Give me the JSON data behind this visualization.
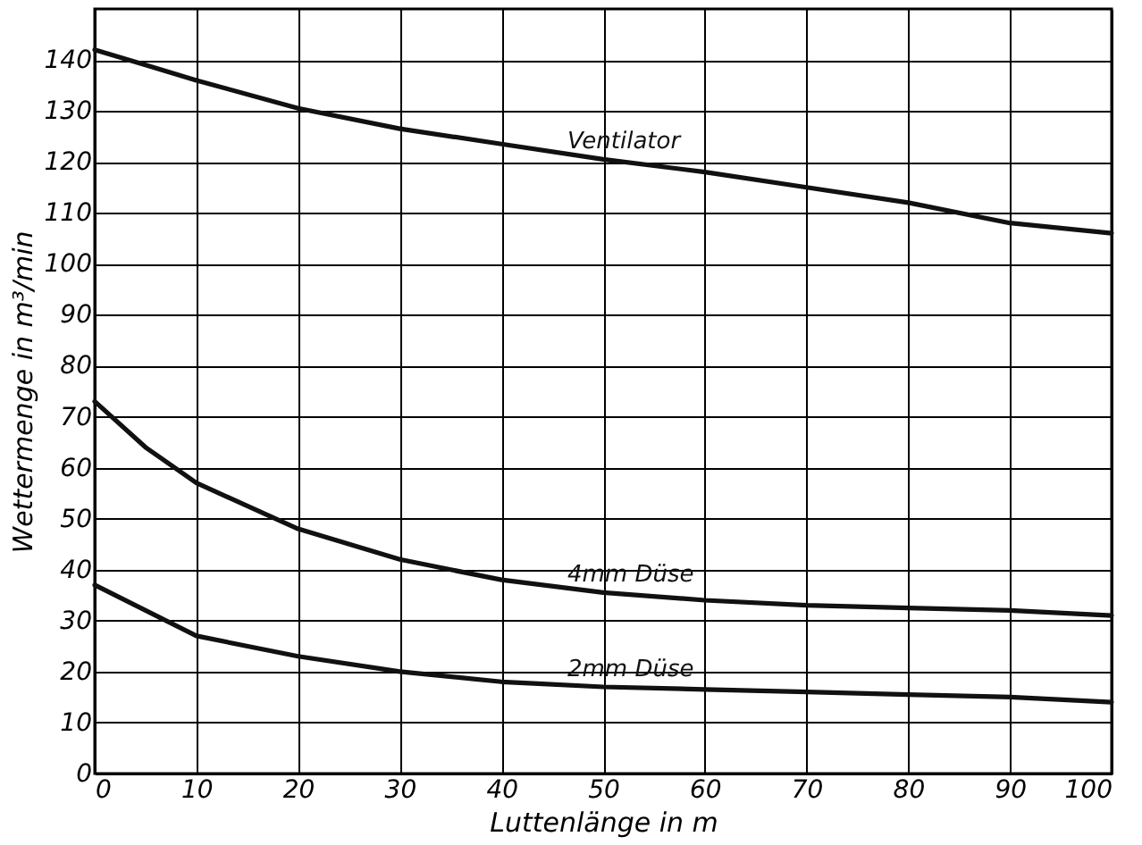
{
  "chart_data": {
    "type": "line",
    "xlabel": "Luttenlänge in m",
    "ylabel": "Wettermenge in m³/min",
    "x": [
      0,
      5,
      10,
      20,
      30,
      40,
      50,
      60,
      70,
      80,
      90,
      100
    ],
    "series": [
      {
        "name": "Ventilator",
        "color": "#111111",
        "values": [
          142,
          139,
          136,
          130.5,
          126.5,
          123.5,
          120.5,
          118,
          115,
          112,
          108,
          106
        ]
      },
      {
        "name": "4mm Düse",
        "color": "#111111",
        "values": [
          73,
          64,
          57,
          48,
          42,
          38,
          35.5,
          34,
          33,
          32.5,
          32,
          31
        ]
      },
      {
        "name": "2mm Düse",
        "color": "#111111",
        "values": [
          37,
          32,
          27,
          23,
          20,
          18,
          17,
          16.5,
          16,
          15.5,
          15,
          14
        ]
      }
    ],
    "xlim": [
      0,
      100
    ],
    "xticks": [
      0,
      10,
      20,
      30,
      40,
      50,
      60,
      70,
      80,
      90,
      100
    ],
    "ylim": [
      0,
      150
    ],
    "yticks": [
      0,
      10,
      20,
      30,
      40,
      50,
      60,
      70,
      80,
      90,
      100,
      110,
      120,
      130,
      140
    ],
    "grid": true,
    "legend": false,
    "marker": "none",
    "line_style": "solid"
  }
}
